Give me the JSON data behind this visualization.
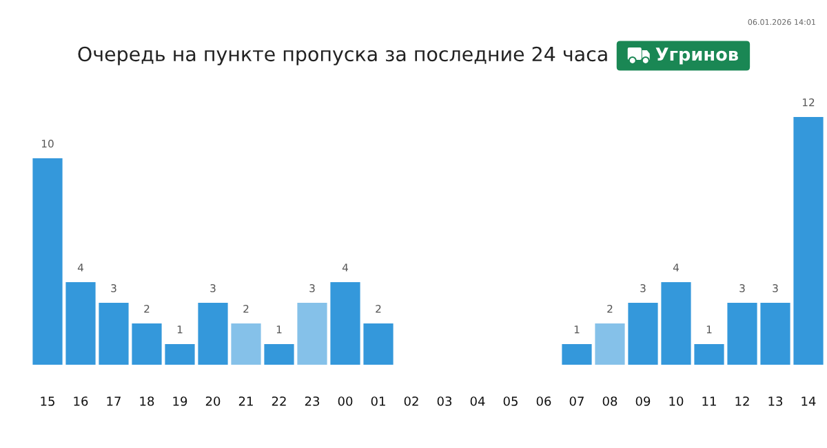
{
  "chart_data": {
    "type": "bar",
    "title": "Очередь на пункте пропуска за последние 24 часа",
    "subtitle": "Угринов",
    "annotations": [
      "06.01.2026 14:01"
    ],
    "categories": [
      "15",
      "16",
      "17",
      "18",
      "19",
      "20",
      "21",
      "22",
      "23",
      "00",
      "01",
      "02",
      "03",
      "04",
      "05",
      "06",
      "07",
      "08",
      "09",
      "10",
      "11",
      "12",
      "13",
      "14"
    ],
    "values": [
      10,
      4,
      3,
      2,
      1,
      3,
      2,
      1,
      3,
      4,
      2,
      null,
      null,
      null,
      null,
      null,
      1,
      2,
      3,
      4,
      1,
      3,
      3,
      12
    ],
    "colors": [
      "#3498db",
      "#3498db",
      "#3498db",
      "#3498db",
      "#3498db",
      "#3498db",
      "#85c1e9",
      "#3498db",
      "#85c1e9",
      "#3498db",
      "#3498db",
      null,
      null,
      null,
      null,
      null,
      "#3498db",
      "#85c1e9",
      "#3498db",
      "#3498db",
      "#3498db",
      "#3498db",
      "#3498db",
      "#3498db"
    ],
    "data_labels": true,
    "tick_labels": "x"
  }
}
